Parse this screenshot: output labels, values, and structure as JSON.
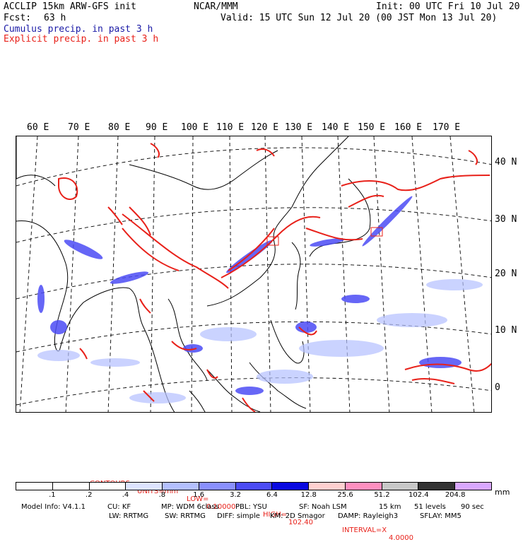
{
  "header": {
    "model": "ACCLIP 15km ARW-GFS init",
    "org": "NCAR/MMM",
    "init": "Init: 00 UTC Fri 10 Jul 20",
    "fcst_label": "Fcst:",
    "fcst_value": "63 h",
    "valid": "Valid: 15 UTC Sun 12 Jul 20 (00 JST Mon 13 Jul 20)",
    "legend_cumulus": "Cumulus precip. in past 3 h",
    "legend_explicit": "Explicit precip. in past 3 h"
  },
  "colors": {
    "cumulus": "#1a1aa6",
    "explicit": "#e8211a"
  },
  "map": {
    "lon_labels": [
      "60 E",
      "70 E",
      "80 E",
      "90 E",
      "100 E",
      "110 E",
      "120 E",
      "130 E",
      "140 E",
      "150 E",
      "160 E",
      "170 E"
    ],
    "lat_labels": [
      "40 N",
      "30 N",
      "20 N",
      "10 N",
      "0"
    ]
  },
  "contours": {
    "label": "CONTOURS:",
    "units": "UNITS=mm",
    "low_label": "LOW=",
    "low": "0.10000",
    "high_label": "HIGH=",
    "high": "102.40",
    "interval_label": "INTERVAL=X",
    "interval": "4.0000"
  },
  "colorbar": {
    "unit": "mm",
    "levels": [
      ".1",
      ".2",
      ".4",
      ".8",
      "1.6",
      "3.2",
      "6.4",
      "12.8",
      "25.6",
      "51.2",
      "102.4",
      "204.8"
    ],
    "colors": [
      "#ffffff",
      "#ffffff",
      "#ffffff",
      "#dde4ff",
      "#b4c0ff",
      "#8a90ff",
      "#4c4cf5",
      "#0a0ae0",
      "#ffd0d0",
      "#ff90c0",
      "#c8c8c8",
      "#333333",
      "#d9a8ff"
    ]
  },
  "model_info": {
    "line1": [
      "Model Info: V4.1.1",
      "CU: KF",
      "MP: WDM 6class",
      "PBL: YSU",
      "SF: Noah LSM",
      "15 km",
      "51 levels",
      "90 sec"
    ],
    "line2": [
      "LW: RRTMG",
      "SW: RRTMG",
      "DIFF: simple",
      "KM: 2D Smagor",
      "DAMP: Rayleigh3",
      "SFLAY: MM5"
    ]
  }
}
